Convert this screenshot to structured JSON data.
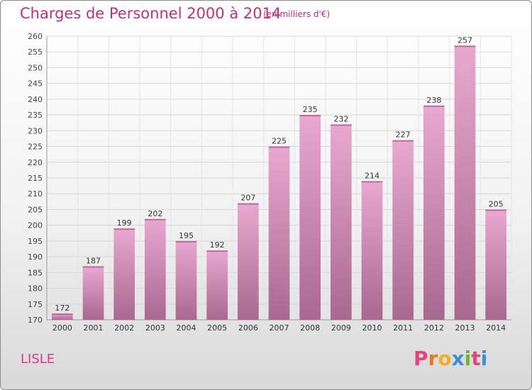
{
  "header": {
    "title": "Charges de Personnel 2000 à 2014",
    "subtitle": "(en milliers d'€)"
  },
  "footer": {
    "commune": "LISLE",
    "logo_letters": [
      "P",
      "r",
      "o",
      "x",
      "i",
      "t",
      "i"
    ]
  },
  "colors": {
    "title": "#c0307a",
    "bar_light": "#e8a8cf",
    "bar_dark": "#a86890",
    "logo": [
      "#e0467a",
      "#e07a2a",
      "#f2b020",
      "#3a8fd8",
      "#6ab82e",
      "#e0467a",
      "#3a8fd8"
    ]
  },
  "chart_data": {
    "type": "bar",
    "title": "Charges de Personnel 2000 à 2014",
    "subtitle": "(en milliers d'€)",
    "categories": [
      "2000",
      "2001",
      "2002",
      "2003",
      "2004",
      "2005",
      "2006",
      "2007",
      "2008",
      "2009",
      "2010",
      "2011",
      "2012",
      "2013",
      "2014"
    ],
    "values": [
      172,
      187,
      199,
      202,
      195,
      192,
      207,
      225,
      235,
      232,
      214,
      227,
      238,
      257,
      205
    ],
    "ylim": [
      170,
      260
    ],
    "yticks": [
      170,
      175,
      180,
      185,
      190,
      195,
      200,
      205,
      210,
      215,
      220,
      225,
      230,
      235,
      240,
      245,
      250,
      255,
      260
    ],
    "xlabel": "",
    "ylabel": "",
    "grid": true,
    "legend": "none"
  }
}
